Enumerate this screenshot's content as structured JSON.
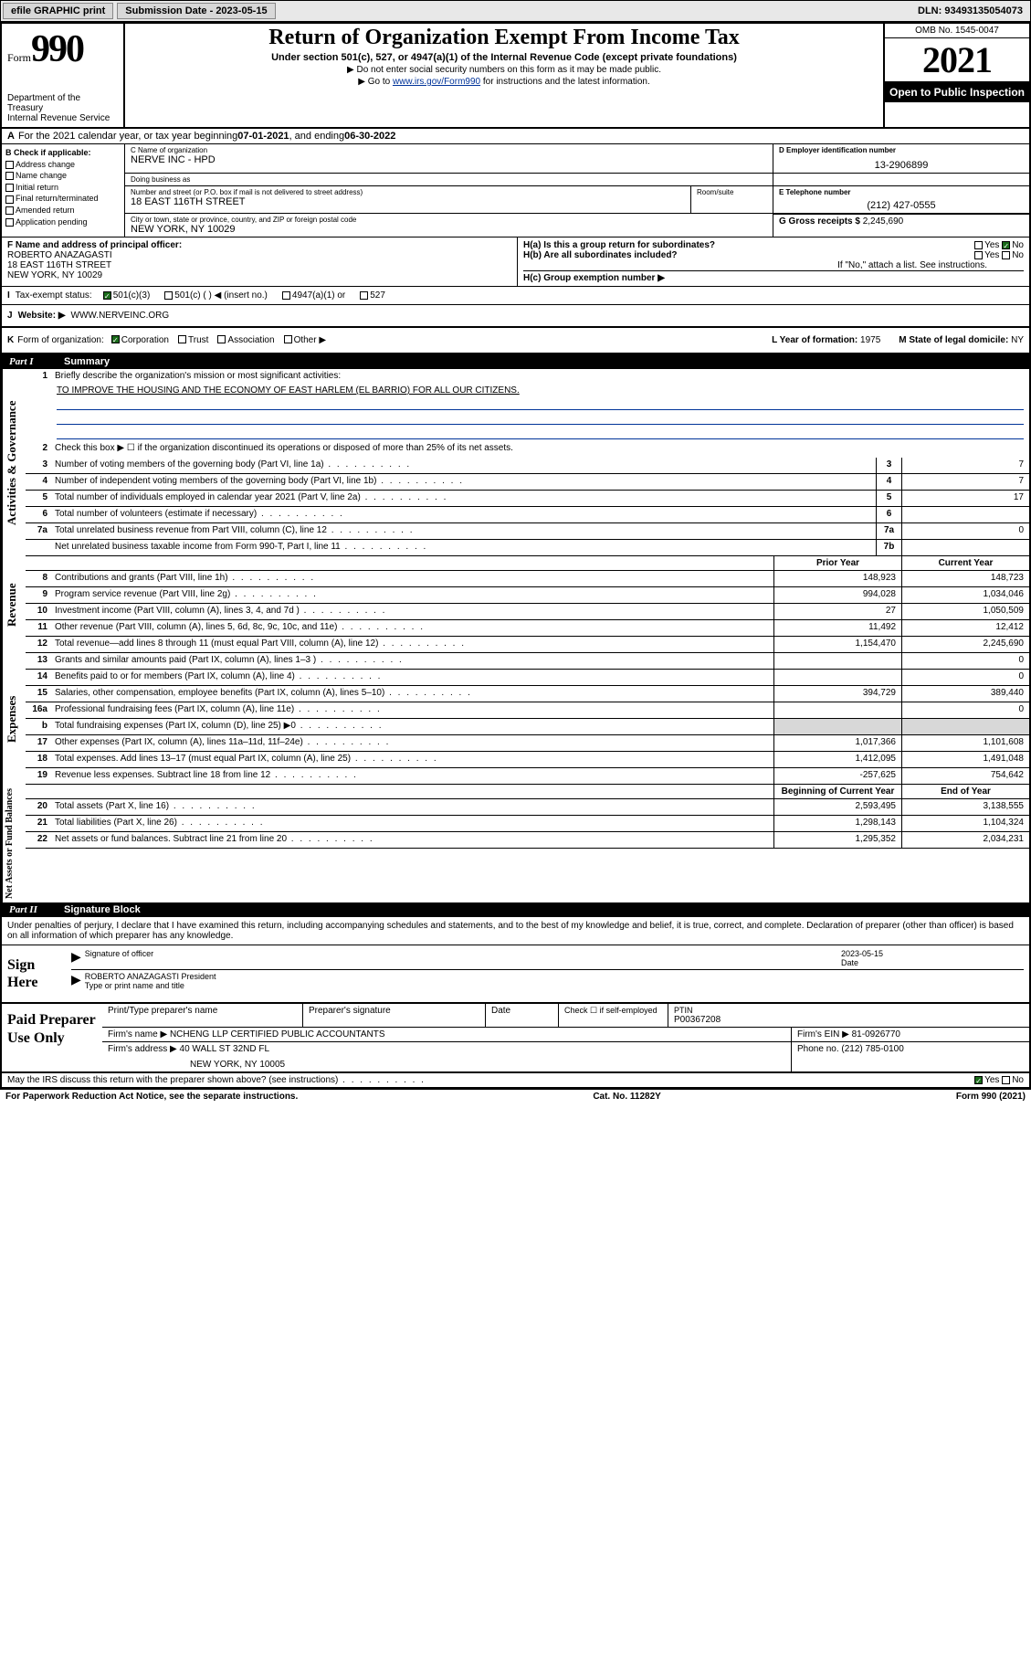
{
  "topbar": {
    "efile": "efile GRAPHIC print",
    "submission": "Submission Date - 2023-05-15",
    "dln": "DLN: 93493135054073"
  },
  "header": {
    "form_prefix": "Form",
    "form_number": "990",
    "dept": "Department of the Treasury",
    "irs": "Internal Revenue Service",
    "title": "Return of Organization Exempt From Income Tax",
    "subtitle": "Under section 501(c), 527, or 4947(a)(1) of the Internal Revenue Code (except private foundations)",
    "warn1": "▶ Do not enter social security numbers on this form as it may be made public.",
    "warn2_pre": "▶ Go to ",
    "warn2_link": "www.irs.gov/Form990",
    "warn2_post": " for instructions and the latest information.",
    "omb": "OMB No. 1545-0047",
    "year": "2021",
    "open": "Open to Public Inspection"
  },
  "rowA": {
    "label": "A",
    "text": "For the 2021 calendar year, or tax year beginning ",
    "begin": "07-01-2021",
    "mid": " , and ending ",
    "end": "06-30-2022"
  },
  "colB": {
    "header": "B Check if applicable:",
    "items": [
      "Address change",
      "Name change",
      "Initial return",
      "Final return/terminated",
      "Amended return",
      "Application pending"
    ]
  },
  "orgbox": {
    "c_label": "C Name of organization",
    "c_value": "NERVE INC - HPD",
    "dba_label": "Doing business as",
    "dba_value": "",
    "addr_label": "Number and street (or P.O. box if mail is not delivered to street address)",
    "addr_value": "18 EAST 116TH STREET",
    "room_label": "Room/suite",
    "room_value": "",
    "city_label": "City or town, state or province, country, and ZIP or foreign postal code",
    "city_value": "NEW YORK, NY  10029",
    "d_label": "D Employer identification number",
    "d_value": "13-2906899",
    "e_label": "E Telephone number",
    "e_value": "(212) 427-0555",
    "g_label": "G Gross receipts $",
    "g_value": "2,245,690"
  },
  "rowF": {
    "f_label": "F  Name and address of principal officer:",
    "f_name": "ROBERTO ANAZAGASTI",
    "f_addr1": "18 EAST 116TH STREET",
    "f_addr2": "NEW YORK, NY  10029",
    "ha": "H(a)  Is this a group return for subordinates?",
    "ha_yes": "Yes",
    "ha_no": "No",
    "hb": "H(b)  Are all subordinates included?",
    "hb_yes": "Yes",
    "hb_no": "No",
    "hb_note": "If \"No,\" attach a list. See instructions.",
    "hc": "H(c)  Group exemption number ▶"
  },
  "rowI": {
    "label": "I",
    "title": "Tax-exempt status:",
    "opt1": "501(c)(3)",
    "opt2": "501(c) (   ) ◀ (insert no.)",
    "opt3": "4947(a)(1) or",
    "opt4": "527"
  },
  "rowJ": {
    "label": "J",
    "title": "Website: ▶",
    "value": "WWW.NERVEINC.ORG"
  },
  "rowK": {
    "label": "K",
    "title": "Form of organization:",
    "opts": [
      "Corporation",
      "Trust",
      "Association",
      "Other ▶"
    ],
    "l_label": "L Year of formation:",
    "l_value": "1975",
    "m_label": "M State of legal domicile:",
    "m_value": "NY"
  },
  "part1": {
    "num": "Part I",
    "title": "Summary"
  },
  "governance": {
    "label": "Activities & Governance",
    "l1": "Briefly describe the organization's mission or most significant activities:",
    "l1v": "TO IMPROVE THE HOUSING AND THE ECONOMY OF EAST HARLEM (EL BARRIO) FOR ALL OUR CITIZENS.",
    "l2": "Check this box ▶ ☐  if the organization discontinued its operations or disposed of more than 25% of its net assets.",
    "l3": "Number of voting members of the governing body (Part VI, line 1a)",
    "l3v": "7",
    "l4": "Number of independent voting members of the governing body (Part VI, line 1b)",
    "l4v": "7",
    "l5": "Total number of individuals employed in calendar year 2021 (Part V, line 2a)",
    "l5v": "17",
    "l6": "Total number of volunteers (estimate if necessary)",
    "l6v": "",
    "l7a": "Total unrelated business revenue from Part VIII, column (C), line 12",
    "l7av": "0",
    "l7b": "Net unrelated business taxable income from Form 990-T, Part I, line 11",
    "l7bv": ""
  },
  "colheaders": {
    "prior": "Prior Year",
    "current": "Current Year",
    "boy": "Beginning of Current Year",
    "eoy": "End of Year"
  },
  "revenue": {
    "label": "Revenue",
    "rows": [
      {
        "n": "8",
        "d": "Contributions and grants (Part VIII, line 1h)",
        "p": "148,923",
        "c": "148,723"
      },
      {
        "n": "9",
        "d": "Program service revenue (Part VIII, line 2g)",
        "p": "994,028",
        "c": "1,034,046"
      },
      {
        "n": "10",
        "d": "Investment income (Part VIII, column (A), lines 3, 4, and 7d )",
        "p": "27",
        "c": "1,050,509"
      },
      {
        "n": "11",
        "d": "Other revenue (Part VIII, column (A), lines 5, 6d, 8c, 9c, 10c, and 11e)",
        "p": "11,492",
        "c": "12,412"
      },
      {
        "n": "12",
        "d": "Total revenue—add lines 8 through 11 (must equal Part VIII, column (A), line 12)",
        "p": "1,154,470",
        "c": "2,245,690"
      }
    ]
  },
  "expenses": {
    "label": "Expenses",
    "rows": [
      {
        "n": "13",
        "d": "Grants and similar amounts paid (Part IX, column (A), lines 1–3 )",
        "p": "",
        "c": "0"
      },
      {
        "n": "14",
        "d": "Benefits paid to or for members (Part IX, column (A), line 4)",
        "p": "",
        "c": "0"
      },
      {
        "n": "15",
        "d": "Salaries, other compensation, employee benefits (Part IX, column (A), lines 5–10)",
        "p": "394,729",
        "c": "389,440"
      },
      {
        "n": "16a",
        "d": "Professional fundraising fees (Part IX, column (A), line 11e)",
        "p": "",
        "c": "0"
      },
      {
        "n": "b",
        "d": "Total fundraising expenses (Part IX, column (D), line 25) ▶0",
        "p": "shade",
        "c": "shade"
      },
      {
        "n": "17",
        "d": "Other expenses (Part IX, column (A), lines 11a–11d, 11f–24e)",
        "p": "1,017,366",
        "c": "1,101,608"
      },
      {
        "n": "18",
        "d": "Total expenses. Add lines 13–17 (must equal Part IX, column (A), line 25)",
        "p": "1,412,095",
        "c": "1,491,048"
      },
      {
        "n": "19",
        "d": "Revenue less expenses. Subtract line 18 from line 12",
        "p": "-257,625",
        "c": "754,642"
      }
    ]
  },
  "netassets": {
    "label": "Net Assets or Fund Balances",
    "rows": [
      {
        "n": "20",
        "d": "Total assets (Part X, line 16)",
        "p": "2,593,495",
        "c": "3,138,555"
      },
      {
        "n": "21",
        "d": "Total liabilities (Part X, line 26)",
        "p": "1,298,143",
        "c": "1,104,324"
      },
      {
        "n": "22",
        "d": "Net assets or fund balances. Subtract line 21 from line 20",
        "p": "1,295,352",
        "c": "2,034,231"
      }
    ]
  },
  "part2": {
    "num": "Part II",
    "title": "Signature Block"
  },
  "sig": {
    "intro": "Under penalties of perjury, I declare that I have examined this return, including accompanying schedules and statements, and to the best of my knowledge and belief, it is true, correct, and complete. Declaration of preparer (other than officer) is based on all information of which preparer has any knowledge.",
    "sign_here": "Sign Here",
    "sig_label": "Signature of officer",
    "date_label": "Date",
    "date_value": "2023-05-15",
    "name_value": "ROBERTO ANAZAGASTI President",
    "name_label": "Type or print name and title"
  },
  "paid": {
    "title": "Paid Preparer Use Only",
    "h1": "Print/Type preparer's name",
    "h2": "Preparer's signature",
    "h3": "Date",
    "h4a": "Check ☐ if self-employed",
    "h4b": "PTIN",
    "ptin": "P00367208",
    "firm_label": "Firm's name    ▶",
    "firm_name": "NCHENG LLP CERTIFIED PUBLIC ACCOUNTANTS",
    "ein_label": "Firm's EIN ▶",
    "ein": "81-0926770",
    "addr_label": "Firm's address ▶",
    "addr1": "40 WALL ST 32ND FL",
    "addr2": "NEW YORK, NY  10005",
    "phone_label": "Phone no.",
    "phone": "(212) 785-0100"
  },
  "footer": {
    "discuss": "May the IRS discuss this return with the preparer shown above? (see instructions)",
    "yes": "Yes",
    "no": "No",
    "pra": "For Paperwork Reduction Act Notice, see the separate instructions.",
    "cat": "Cat. No. 11282Y",
    "form": "Form 990 (2021)"
  }
}
